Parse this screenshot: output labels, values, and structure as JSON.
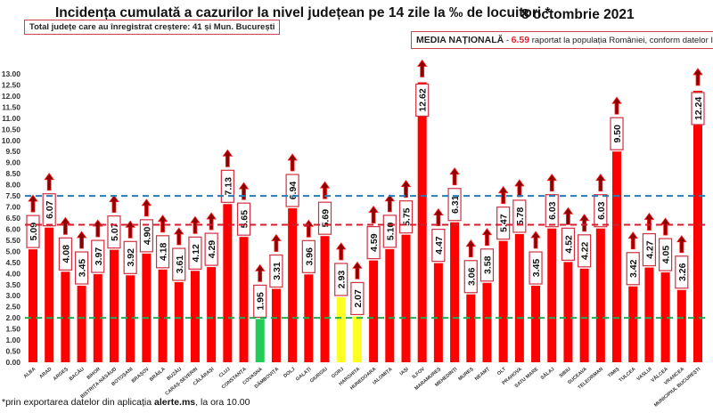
{
  "header": {
    "title": "Incidența cumulată a cazurilor la nivel județean pe 14 zile la ‰ de locuitori *",
    "date": "8 octombrie 2021",
    "increase_note": "Total județe care au înregistrat creștere:  41 și Mun. București",
    "national_label": "MEDIA NAȚIONALĂ",
    "national_sep": " - ",
    "national_value": "6.59",
    "national_note": " raportat la populația României, conform datelor INS"
  },
  "footer": {
    "prefix": "*prin exportarea datelor din aplicația ",
    "app": "alerte.ms",
    "suffix": ", la ora 10.00"
  },
  "chart_data": {
    "type": "bar",
    "categories": [
      "ALBA",
      "ARAD",
      "ARGEȘ",
      "BACĂU",
      "BIHOR",
      "BISTRIȚA-NĂSĂUD",
      "BOTOȘANI",
      "BRAȘOV",
      "BRĂILA",
      "BUZĂU",
      "CARAȘ-SEVERIN",
      "CĂLĂRAȘI",
      "CLUJ",
      "CONSTANȚA",
      "COVASNA",
      "DÂMBOVIȚA",
      "DOLJ",
      "GALAȚI",
      "GIURGIU",
      "GORJ",
      "HARGHITA",
      "HUNEDOARA",
      "IALOMIȚA",
      "IAȘI",
      "ILFOV",
      "MARAMUREȘ",
      "MEHEDINȚI",
      "MUREȘ",
      "NEAMȚ",
      "OLT",
      "PRAHOVA",
      "SATU MARE",
      "SĂLAJ",
      "SIBIU",
      "SUCEAVA",
      "TELEORMAN",
      "TIMIȘ",
      "TULCEA",
      "VASLUI",
      "VÂLCEA",
      "VRANCEA",
      "MUNICIPIUL BUCUREȘTI"
    ],
    "values": [
      5.09,
      6.07,
      4.08,
      3.45,
      3.97,
      5.07,
      3.92,
      4.9,
      4.18,
      3.61,
      4.12,
      4.29,
      7.13,
      5.65,
      1.95,
      3.31,
      6.94,
      3.96,
      5.69,
      2.93,
      2.07,
      4.59,
      5.1,
      5.75,
      12.62,
      4.47,
      6.31,
      3.06,
      3.58,
      5.47,
      5.78,
      3.45,
      6.03,
      4.52,
      4.22,
      6.03,
      9.5,
      3.42,
      4.27,
      4.05,
      3.26,
      12.24
    ],
    "trend": "up",
    "bar_colors": {
      "default": "#ff0000",
      "COVASNA": "#22cc55",
      "GORJ": "#ffff22",
      "HARGHITA": "#ffff22"
    },
    "reference_lines": [
      {
        "value": 7.5,
        "color": "#2a7ab0"
      },
      {
        "value": 6.2,
        "color": "#d02030"
      },
      {
        "value": 2.0,
        "color": "#22aa55"
      }
    ],
    "ylim": [
      0,
      13
    ],
    "ytick_step": 0.5,
    "grid": false
  }
}
